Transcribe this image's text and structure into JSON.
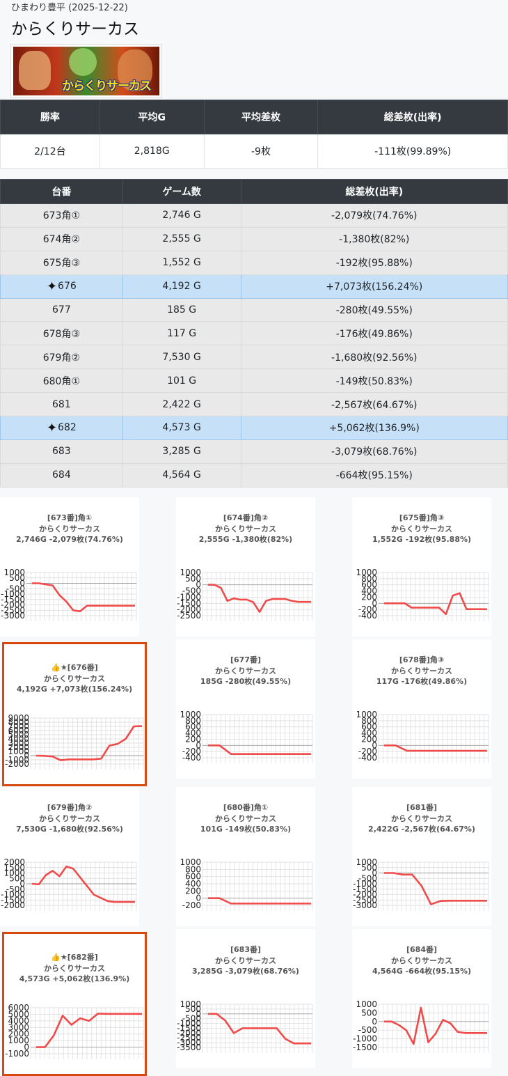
{
  "header": {
    "store_date": "ひまわり豊平 (2025-12-22)",
    "title": "からくりサーカス",
    "banner_logo_text": "からくりサーカス"
  },
  "summary": {
    "headers": [
      "勝率",
      "平均G",
      "平均差枚",
      "総差枚(出率)"
    ],
    "values": [
      "2/12台",
      "2,818G",
      "-9枚",
      "-111枚(99.89%)"
    ]
  },
  "machines": {
    "headers": [
      "台番",
      "ゲーム数",
      "総差枚(出率)"
    ],
    "rows": [
      {
        "no": "673角①",
        "games": "2,746 G",
        "diff": "-2,079枚(74.76%)",
        "highlight": false
      },
      {
        "no": "674角②",
        "games": "2,555 G",
        "diff": "-1,380枚(82%)",
        "highlight": false
      },
      {
        "no": "675角③",
        "games": "1,552 G",
        "diff": "-192枚(95.88%)",
        "highlight": false
      },
      {
        "no": "676",
        "games": "4,192 G",
        "diff": "+7,073枚(156.24%)",
        "highlight": true
      },
      {
        "no": "677",
        "games": "185 G",
        "diff": "-280枚(49.55%)",
        "highlight": false
      },
      {
        "no": "678角③",
        "games": "117 G",
        "diff": "-176枚(49.86%)",
        "highlight": false
      },
      {
        "no": "679角②",
        "games": "7,530 G",
        "diff": "-1,680枚(92.56%)",
        "highlight": false
      },
      {
        "no": "680角①",
        "games": "101 G",
        "diff": "-149枚(50.83%)",
        "highlight": false
      },
      {
        "no": "681",
        "games": "2,422 G",
        "diff": "-2,567枚(64.67%)",
        "highlight": false
      },
      {
        "no": "682",
        "games": "4,573 G",
        "diff": "+5,062枚(136.9%)",
        "highlight": true
      },
      {
        "no": "683",
        "games": "3,285 G",
        "diff": "-3,079枚(68.76%)",
        "highlight": false
      },
      {
        "no": "684",
        "games": "4,564 G",
        "diff": "-664枚(95.15%)",
        "highlight": false
      }
    ]
  },
  "chart_data": [
    {
      "type": "line",
      "title": [
        "[673番]角①",
        "からくりサーカス",
        "2,746G -2,079枚(74.76%)"
      ],
      "ylim": [
        -3000,
        1000
      ],
      "yticks": [
        1000,
        500,
        0,
        -500,
        -1000,
        -1500,
        -2000,
        -2500,
        -3000
      ],
      "values": [
        0,
        0,
        -100,
        -200,
        -1100,
        -1700,
        -2500,
        -2600,
        -2080,
        -2079,
        -2079,
        -2079,
        -2079,
        -2079,
        -2079,
        -2079
      ],
      "highlight": false
    },
    {
      "type": "line",
      "title": [
        "[674番]角②",
        "からくりサーカス",
        "2,555G -1,380枚(82%)"
      ],
      "ylim": [
        -2500,
        1000
      ],
      "yticks": [
        1000,
        500,
        0,
        -500,
        -1000,
        -1500,
        -2000,
        -2500
      ],
      "values": [
        0,
        0,
        -250,
        -1300,
        -1100,
        -1200,
        -1200,
        -1400,
        -2200,
        -1300,
        -1150,
        -1150,
        -1150,
        -1300,
        -1380,
        -1380,
        -1380
      ],
      "highlight": false
    },
    {
      "type": "line",
      "title": [
        "[675番]角③",
        "からくりサーカス",
        "1,552G -192枚(95.88%)"
      ],
      "ylim": [
        -400,
        1000
      ],
      "yticks": [
        1000,
        800,
        600,
        400,
        200,
        0,
        -200,
        -400
      ],
      "values": [
        0,
        0,
        0,
        0,
        -140,
        -140,
        -140,
        -140,
        -140,
        -350,
        250,
        330,
        -190,
        -190,
        -190,
        -192
      ],
      "highlight": false
    },
    {
      "type": "line",
      "title": [
        "👍★[676番]",
        "からくりサーカス",
        "4,192G +7,073枚(156.24%)"
      ],
      "ylim": [
        -2000,
        9000
      ],
      "yticks": [
        9000,
        8000,
        7000,
        6000,
        5000,
        4000,
        3000,
        2000,
        1000,
        0,
        -1000,
        -2000
      ],
      "values": [
        0,
        -50,
        -200,
        -1100,
        -900,
        -900,
        -900,
        -900,
        -700,
        2400,
        2800,
        4000,
        7000,
        7073
      ],
      "highlight": true
    },
    {
      "type": "line",
      "title": [
        "[677番]",
        "からくりサーカス",
        "185G -280枚(49.55%)"
      ],
      "ylim": [
        -400,
        1000
      ],
      "yticks": [
        1000,
        800,
        600,
        400,
        200,
        0,
        -200,
        -400
      ],
      "values": [
        0,
        0,
        -280,
        -280,
        -280,
        -280,
        -280,
        -280,
        -280,
        -280
      ],
      "highlight": false
    },
    {
      "type": "line",
      "title": [
        "[678番]角③",
        "からくりサーカス",
        "117G -176枚(49.86%)"
      ],
      "ylim": [
        -400,
        1000
      ],
      "yticks": [
        1000,
        800,
        600,
        400,
        200,
        0,
        -200,
        -400
      ],
      "values": [
        0,
        0,
        -176,
        -176,
        -176,
        -176,
        -176,
        -176,
        -176,
        -176
      ],
      "highlight": false
    },
    {
      "type": "line",
      "title": [
        "[679番]角②",
        "からくりサーカス",
        "7,530G -1,680枚(92.56%)"
      ],
      "ylim": [
        -2000,
        2000
      ],
      "yticks": [
        2000,
        1500,
        1000,
        500,
        0,
        -500,
        -1000,
        -1500,
        -2000
      ],
      "values": [
        0,
        -50,
        800,
        1200,
        700,
        1600,
        1400,
        600,
        -200,
        -1000,
        -1300,
        -1600,
        -1680,
        -1680,
        -1680,
        -1680
      ],
      "highlight": false
    },
    {
      "type": "line",
      "title": [
        "[680番]角①",
        "からくりサーカス",
        "101G -149枚(50.83%)"
      ],
      "ylim": [
        -200,
        1000
      ],
      "yticks": [
        1000,
        800,
        600,
        400,
        200,
        0,
        -200
      ],
      "values": [
        0,
        0,
        -149,
        -149,
        -149,
        -149,
        -149,
        -149,
        -149,
        -149
      ],
      "highlight": false
    },
    {
      "type": "line",
      "title": [
        "[681番]",
        "からくりサーカス",
        "2,422G -2,567枚(64.67%)"
      ],
      "ylim": [
        -3000,
        1000
      ],
      "yticks": [
        1000,
        500,
        0,
        -500,
        -1000,
        -1500,
        -2000,
        -2500,
        -3000
      ],
      "values": [
        0,
        0,
        -150,
        -150,
        -1200,
        -2900,
        -2600,
        -2567,
        -2567,
        -2567,
        -2567,
        -2567
      ],
      "highlight": false
    },
    {
      "type": "line",
      "title": [
        "👍★[682番]",
        "からくりサーカス",
        "4,573G +5,062枚(136.9%)"
      ],
      "ylim": [
        -1000,
        6000
      ],
      "yticks": [
        6000,
        5000,
        4000,
        3000,
        2000,
        1000,
        0,
        -1000
      ],
      "values": [
        0,
        0,
        1800,
        4800,
        3400,
        4400,
        4000,
        5100,
        5062,
        5062,
        5062,
        5062,
        5062
      ],
      "highlight": true
    },
    {
      "type": "line",
      "title": [
        "[683番]",
        "からくりサーカス",
        "3,285G -3,079枚(68.76%)"
      ],
      "ylim": [
        -3500,
        1000
      ],
      "yticks": [
        1000,
        500,
        0,
        -500,
        -1000,
        -1500,
        -2000,
        -2500,
        -3000,
        -3500
      ],
      "values": [
        0,
        0,
        -700,
        -2000,
        -1500,
        -1500,
        -1500,
        -1500,
        -1500,
        -2600,
        -3079,
        -3079,
        -3079
      ],
      "highlight": false
    },
    {
      "type": "line",
      "title": [
        "[684番]",
        "からくりサーカス",
        "4,564G -664枚(95.15%)"
      ],
      "ylim": [
        -1500,
        1000
      ],
      "yticks": [
        1000,
        500,
        0,
        -500,
        -1000,
        -1500
      ],
      "values": [
        0,
        0,
        -200,
        -500,
        -1300,
        800,
        -1200,
        -700,
        100,
        -100,
        -600,
        -664,
        -664,
        -664,
        -664
      ],
      "highlight": false
    }
  ]
}
